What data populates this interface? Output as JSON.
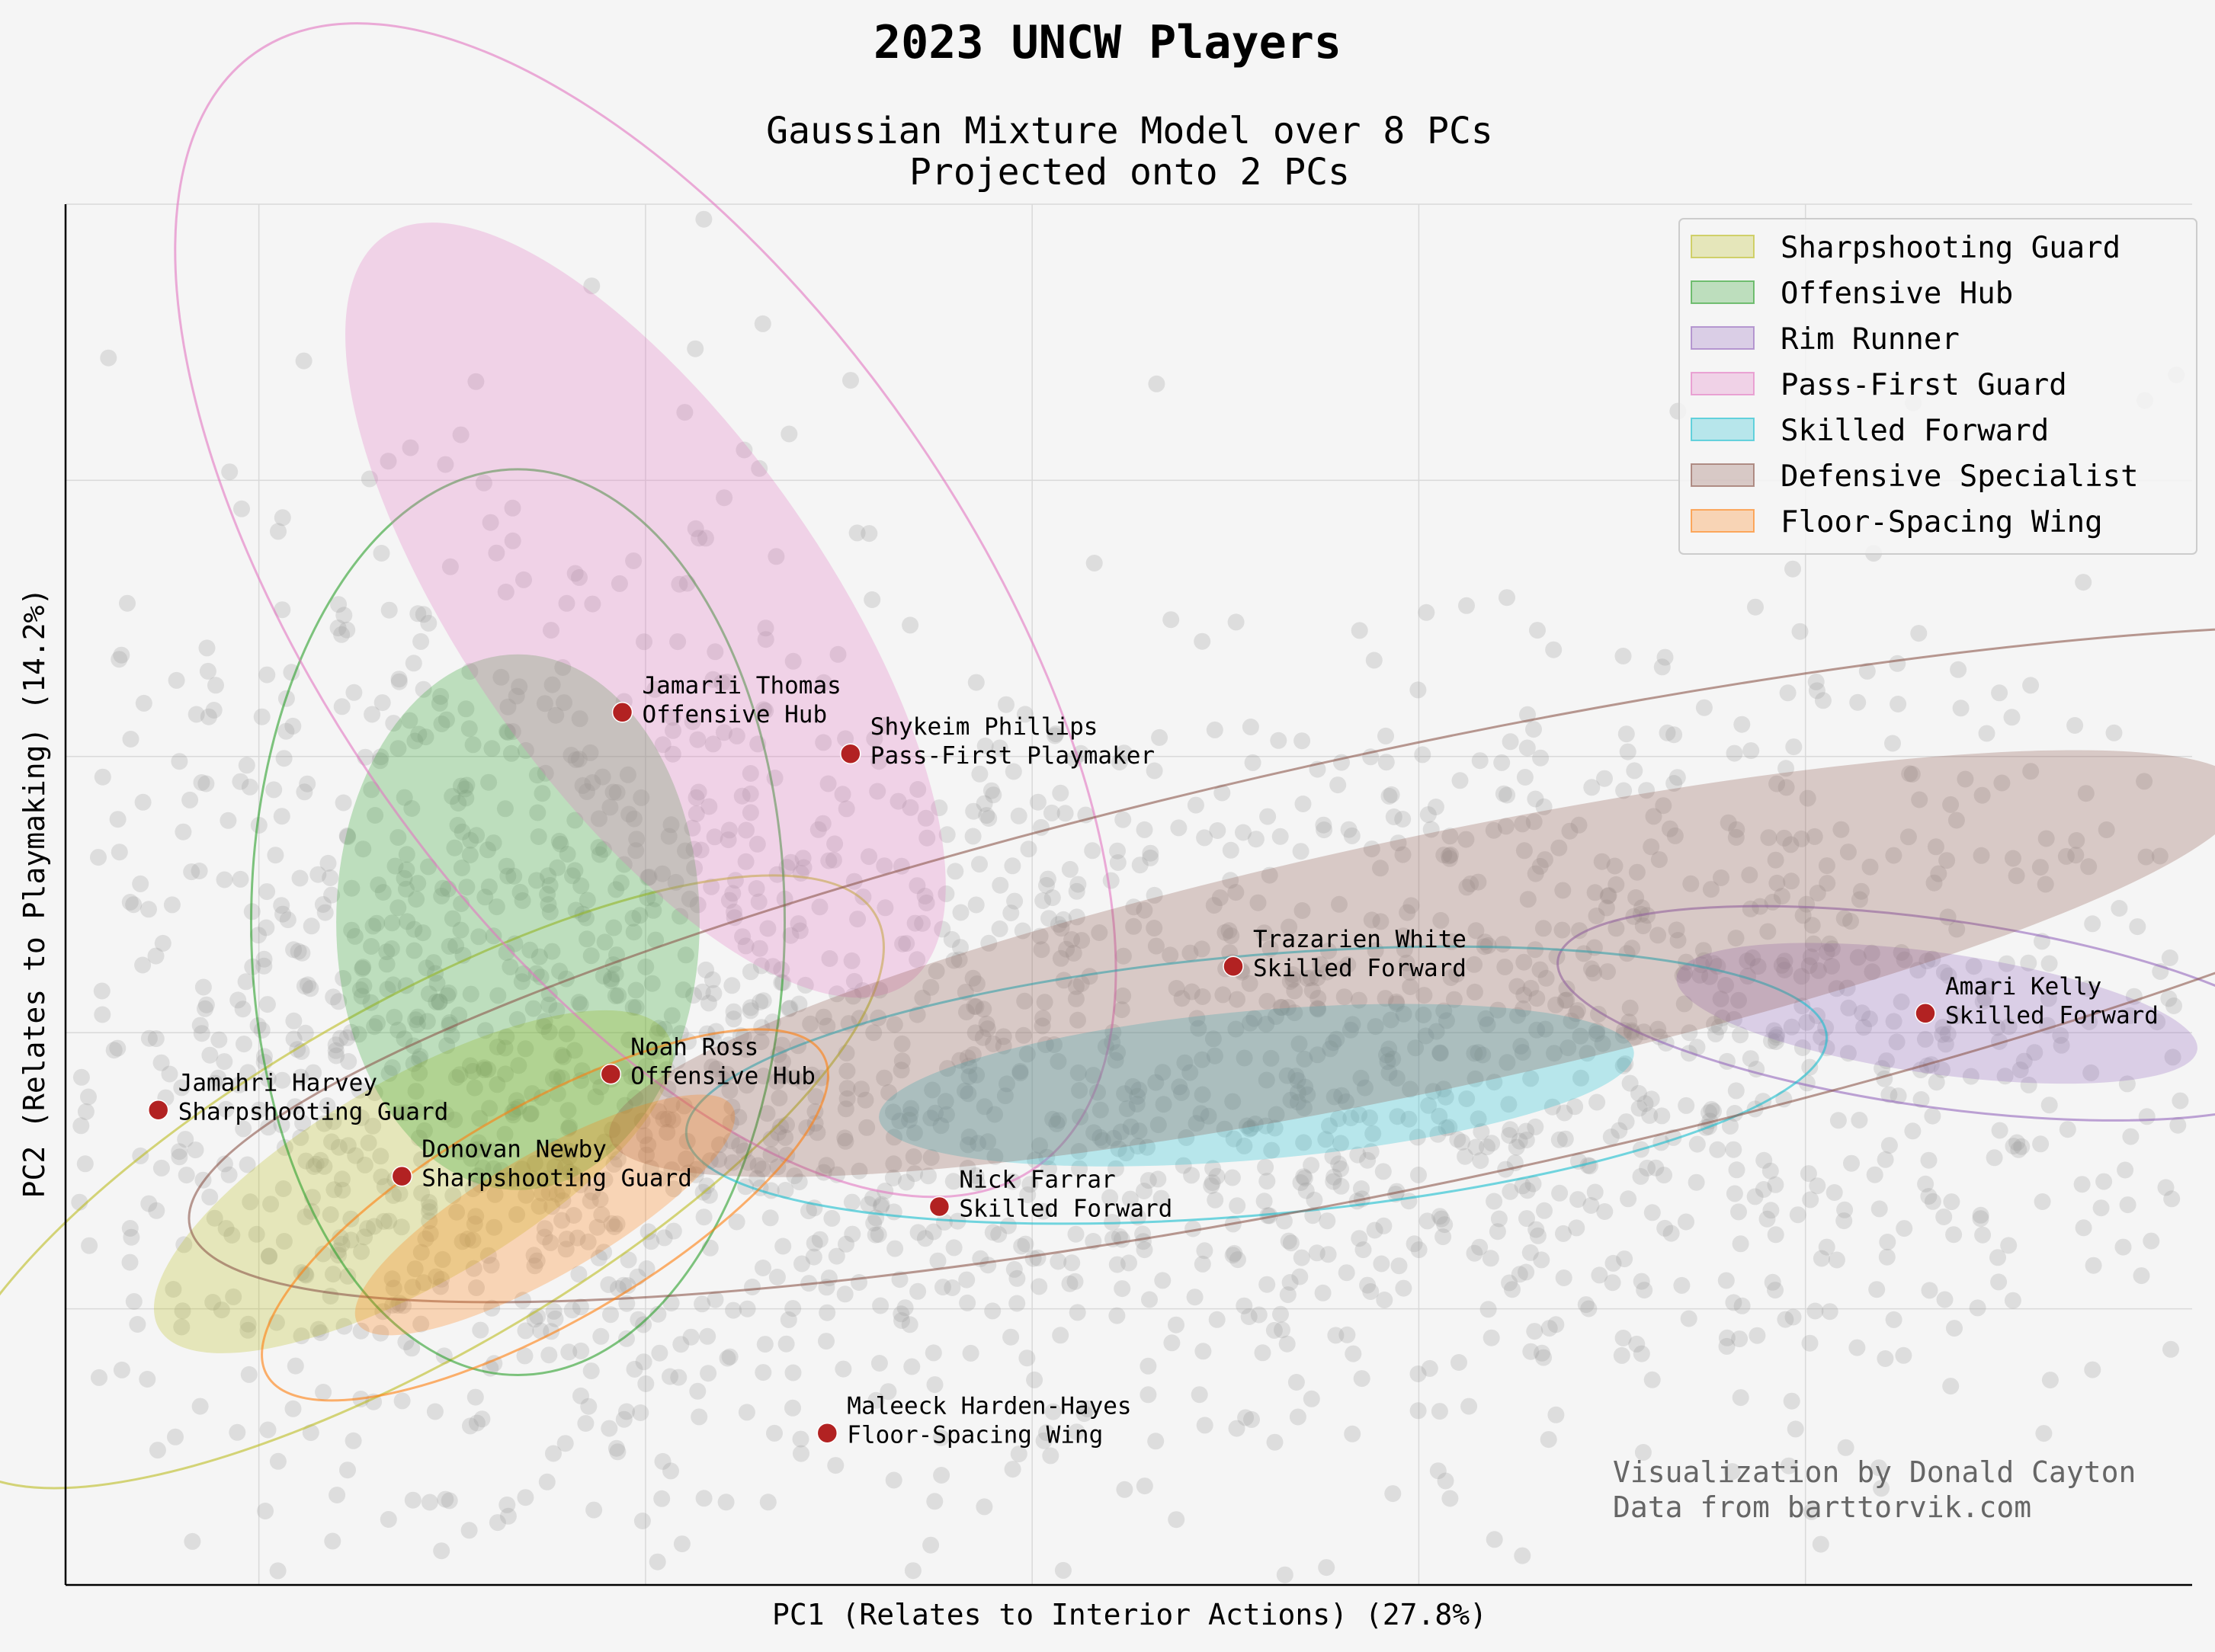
{
  "figure": {
    "title": "2023 UNCW Players",
    "subtitle_line1": "Gaussian Mixture Model over 8 PCs",
    "subtitle_line2": "Projected onto 2 PCs",
    "xlabel": "PC1 (Relates to Interior Actions) (27.8%)",
    "ylabel": "PC2 (Relates to Playmaking) (14.2%)",
    "credit_line1": "Visualization by Donald Cayton",
    "credit_line2": "Data from barttorvik.com"
  },
  "legend": {
    "items": [
      {
        "label": "Sharpshooting Guard",
        "color": "#bcbd22"
      },
      {
        "label": "Offensive Hub",
        "color": "#2ca02c"
      },
      {
        "label": "Rim Runner",
        "color": "#9467bd"
      },
      {
        "label": "Pass-First Guard",
        "color": "#e377c2"
      },
      {
        "label": "Skilled Forward",
        "color": "#17becf"
      },
      {
        "label": "Defensive Specialist",
        "color": "#8c564b"
      },
      {
        "label": "Floor-Spacing Wing",
        "color": "#ff7f0e"
      }
    ]
  },
  "chart_data": {
    "type": "scatter",
    "title": "2023 UNCW Players",
    "subtitle": "Gaussian Mixture Model over 8 PCs / Projected onto 2 PCs",
    "xlabel": "PC1 (Relates to Interior Actions) (27.8%)",
    "ylabel": "PC2 (Relates to Playmaking) (14.2%)",
    "xlim": [
      -5,
      50
    ],
    "ylim": [
      -10,
      40
    ],
    "ticks_labeled": false,
    "grid": true,
    "legend_position": "top-right",
    "background_points": {
      "description_color": "#999999",
      "count_approx": 2500
    },
    "clusters": [
      {
        "name": "Sharpshooting Guard",
        "color": "#bcbd22",
        "center": [
          4.0,
          4.6
        ],
        "inner_axes": [
          7.6,
          3.7
        ],
        "outer_axes": [
          13.8,
          6.3
        ],
        "angle_deg": 30
      },
      {
        "name": "Offensive Hub",
        "color": "#2ca02c",
        "center": [
          6.7,
          14.0
        ],
        "inner_axes": [
          4.7,
          9.7
        ],
        "outer_axes": [
          6.9,
          16.4
        ],
        "angle_deg": 0
      },
      {
        "name": "Rim Runner",
        "color": "#9467bd",
        "center": [
          43.4,
          10.7
        ],
        "inner_axes": [
          6.8,
          2.2
        ],
        "outer_axes": [
          9.9,
          3.4
        ],
        "angle_deg": -8
      },
      {
        "name": "Pass-First Guard",
        "color": "#e377c2",
        "center": [
          10.0,
          25.3
        ],
        "inner_axes": [
          11.8,
          6.5
        ],
        "outer_axes": [
          17.6,
          11.6
        ],
        "angle_deg": -55
      },
      {
        "name": "Skilled Forward",
        "color": "#17becf",
        "center": [
          25.8,
          8.1
        ],
        "inner_axes": [
          9.8,
          2.7
        ],
        "outer_axes": [
          14.8,
          4.7
        ],
        "angle_deg": 5
      },
      {
        "name": "Defensive Specialist",
        "color": "#8c564b",
        "center": [
          30.2,
          12.5
        ],
        "inner_axes": [
          21.6,
          4.6
        ],
        "outer_axes": [
          32.7,
          7.9
        ],
        "angle_deg": 12
      },
      {
        "name": "Floor-Spacing Wing",
        "color": "#ff7f0e",
        "center": [
          7.4,
          3.4
        ],
        "inner_axes": [
          5.6,
          2.2
        ],
        "outer_axes": [
          8.3,
          3.9
        ],
        "angle_deg": 30
      }
    ],
    "players": [
      {
        "name": "Jamarii Thomas",
        "role": "Offensive Hub",
        "x": 9.4,
        "y": 21.6
      },
      {
        "name": "Shykeim Phillips",
        "role": "Pass-First Playmaker",
        "x": 15.3,
        "y": 20.1
      },
      {
        "name": "Trazarien White",
        "role": "Skilled Forward",
        "x": 25.2,
        "y": 12.4
      },
      {
        "name": "Amari Kelly",
        "role": "Skilled Forward",
        "x": 43.1,
        "y": 10.7
      },
      {
        "name": "Noah Ross",
        "role": "Offensive Hub",
        "x": 9.1,
        "y": 8.5
      },
      {
        "name": "Jamahri Harvey",
        "role": "Sharpshooting Guard",
        "x": -2.6,
        "y": 7.2
      },
      {
        "name": "Donovan Newby",
        "role": "Sharpshooting Guard",
        "x": 3.7,
        "y": 4.8
      },
      {
        "name": "Nick Farrar",
        "role": "Skilled Forward",
        "x": 17.6,
        "y": 3.7
      },
      {
        "name": "Maleeck Harden-Hayes",
        "role": "Floor-Spacing Wing",
        "x": 14.7,
        "y": -4.5
      }
    ],
    "player_marker_color": "#b22222"
  }
}
